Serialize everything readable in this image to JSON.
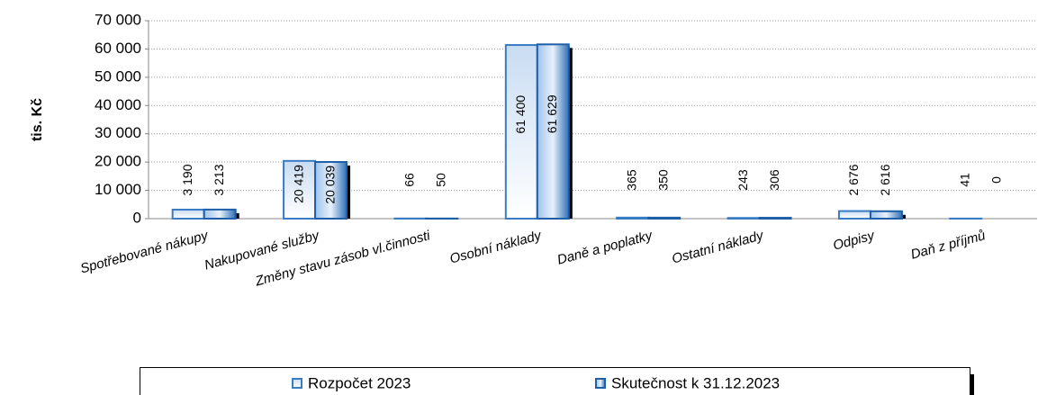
{
  "chart_data": {
    "type": "bar",
    "y_label": "tis. Kč",
    "categories": [
      "Spotřebované nákupy",
      "Nakupované služby",
      "Změny stavu zásob vl.činnosti",
      "Osobní náklady",
      "Daně a poplatky",
      "Ostatní náklady",
      "Odpisy",
      "Daň z příjmů"
    ],
    "series": [
      {
        "name": "Rozpočet 2023",
        "color": "#3a7cc4",
        "values": [
          3190,
          20419,
          66,
          61400,
          365,
          243,
          2676,
          41
        ],
        "value_labels": [
          "3 190",
          "20 419",
          "66",
          "61 400",
          "365",
          "243",
          "2 676",
          "41"
        ]
      },
      {
        "name": "Skutečnost k 31.12.2023",
        "color": "#1f5fa8",
        "values": [
          3213,
          20039,
          50,
          61629,
          350,
          306,
          2616,
          0
        ],
        "value_labels": [
          "3 213",
          "20 039",
          "50",
          "61 629",
          "350",
          "306",
          "2 616",
          "0"
        ]
      }
    ],
    "ylim": [
      0,
      70000
    ],
    "yticks": [
      0,
      {
        "value": 10000,
        "label": "10 000"
      },
      {
        "value": 20000,
        "label": "20 000"
      },
      {
        "value": 30000,
        "label": "30 000"
      },
      {
        "value": 40000,
        "label": "40 000"
      },
      {
        "value": 50000,
        "label": "50 000"
      },
      {
        "value": 60000,
        "label": "60 000"
      },
      {
        "value": 70000,
        "label": "70 000"
      }
    ],
    "grid": true,
    "legend": "bottom"
  }
}
